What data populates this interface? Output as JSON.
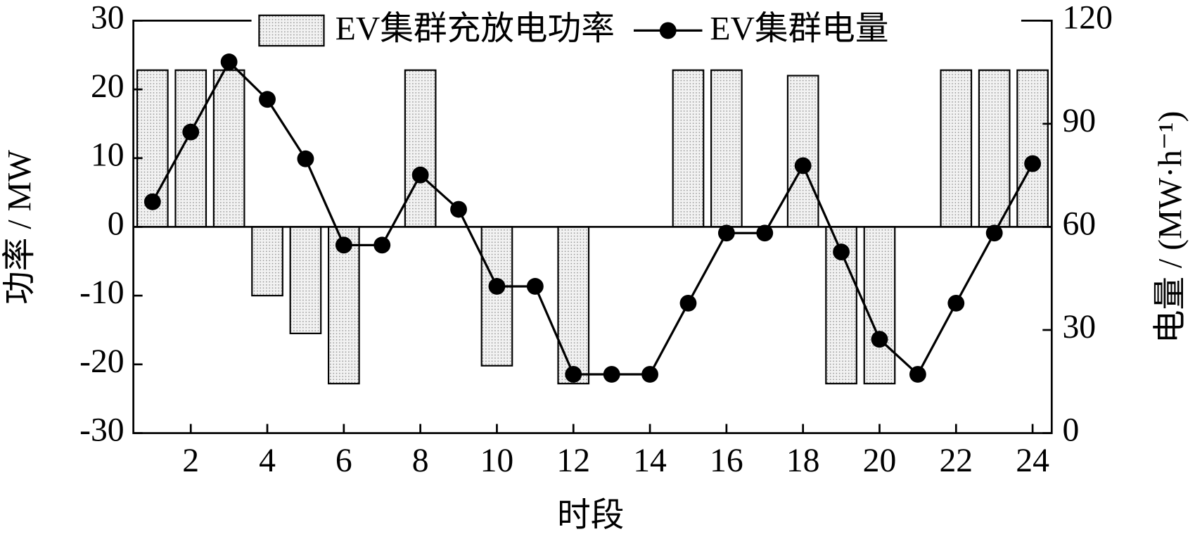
{
  "chart_data": {
    "type": "bar",
    "x": [
      1,
      2,
      3,
      4,
      5,
      6,
      7,
      8,
      9,
      10,
      11,
      12,
      13,
      14,
      15,
      16,
      17,
      18,
      19,
      20,
      21,
      22,
      23,
      24
    ],
    "series": [
      {
        "name": "EV集群充放电功率",
        "type": "bar",
        "color": "#e0e0e0",
        "axis": "y",
        "values": [
          22.8,
          22.8,
          22.8,
          -10,
          -15.5,
          -22.8,
          0,
          22.8,
          0,
          -20.2,
          0,
          -22.8,
          0,
          0,
          22.8,
          22.8,
          0,
          22,
          -22.8,
          -22.8,
          0,
          22.8,
          22.8,
          22.8
        ]
      },
      {
        "name": "EV集群电量",
        "type": "line",
        "color": "#000000",
        "axis": "y2",
        "values": [
          67.3,
          87.6,
          108,
          97.1,
          79.8,
          54.7,
          54.7,
          75.1,
          65.1,
          42.7,
          42.7,
          17.1,
          17.1,
          17.1,
          37.8,
          58.2,
          58.2,
          77.8,
          52.7,
          27.3,
          17.1,
          37.8,
          58.2,
          78.4
        ]
      }
    ],
    "xlabel": "时段",
    "ylabel": "功率 / MW",
    "y2label": "电量 / (MW·h⁻¹)",
    "xlim": [
      0.5,
      24.5
    ],
    "xticks": [
      2,
      4,
      6,
      8,
      10,
      12,
      14,
      16,
      18,
      20,
      22,
      24
    ],
    "ylim": [
      -30,
      30
    ],
    "yticks": [
      -30,
      -20,
      -10,
      0,
      10,
      20,
      30
    ],
    "y2lim": [
      0,
      120
    ],
    "y2ticks": [
      0,
      30,
      60,
      90,
      120
    ],
    "legend": "top"
  }
}
